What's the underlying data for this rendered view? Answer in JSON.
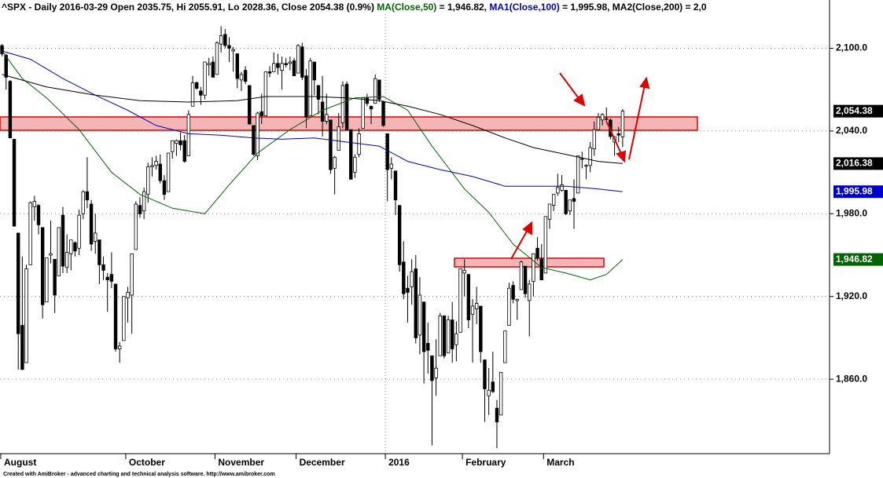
{
  "chart_data": {
    "type": "candlestick",
    "title_parts": [
      {
        "text": "^SPX - Daily 2016-03-29 Open 2035.75, Hi 2055.91, Lo 2028.36, Close 2054.38 (0.9%) ",
        "color": "#000000"
      },
      {
        "text": "MA(Close,50)",
        "color": "#006400"
      },
      {
        "text": " = 1,946.82, ",
        "color": "#000000"
      },
      {
        "text": "MA1(Close,100)",
        "color": "#0000cc"
      },
      {
        "text": " = 1,995.98, ",
        "color": "#000000"
      },
      {
        "text": "MA2(Close,200)",
        "color": "#000000"
      },
      {
        "text": " = 2,0",
        "color": "#000000"
      }
    ],
    "footer": "Created with AmiBroker - advanced charting and technical analysis software. http://www.amibroker.com",
    "open": [
      2102,
      2095,
      2076,
      2034,
      1966,
      1899,
      1872,
      1943,
      1985,
      1986,
      1970,
      1916,
      1950,
      1947,
      1935,
      1979,
      1941,
      1951,
      1959,
      1955,
      1980,
      1996,
      1987,
      1960,
      1961,
      1943,
      1934,
      1936,
      1929,
      1882,
      1888,
      1919,
      1921,
      1954,
      1986,
      1982,
      1994,
      2014,
      2015,
      2016,
      2004,
      1996,
      2025,
      2031,
      2033,
      2033,
      2022,
      2058,
      2075,
      2069,
      2066,
      2088,
      2090,
      2081,
      2103,
      2110,
      2102,
      2098,
      2096,
      2077,
      2084,
      2073,
      2044,
      2022,
      2054,
      2051,
      2083,
      2083,
      2089,
      2084,
      2089,
      2089,
      2091,
      2082,
      2101,
      2080,
      2051,
      2090,
      2073,
      2061,
      2047,
      2048,
      2013,
      2026,
      2046,
      2074,
      2041,
      2010,
      2023,
      2042,
      2064,
      2058,
      2060,
      2077,
      2061,
      2038,
      2013,
      2011,
      1986,
      1945,
      1926,
      1927,
      1940,
      1892,
      1916,
      1886,
      1877,
      1861,
      1877,
      1906,
      1879,
      1903,
      1885,
      1894,
      1937,
      1936,
      1907,
      1911,
      1913,
      1874,
      1848,
      1858,
      1839,
      1834,
      1872,
      1899,
      1928,
      1917,
      1925,
      1942,
      1917,
      1931,
      1955,
      1947,
      1937,
      1976,
      1986,
      1995,
      1997,
      1997,
      1982,
      1991,
      1995,
      2020,
      2015,
      2015,
      2027,
      2041,
      2048,
      2049,
      2048,
      2032,
      2038,
      2035.75
    ],
    "high": [
      2103,
      2096,
      2077,
      2034,
      1966,
      1949,
      1943,
      1989,
      1993,
      1987,
      1970,
      1948,
      1975,
      1947,
      1970,
      1985,
      1965,
      1961,
      1960,
      1983,
      1997,
      2021,
      1990,
      1980,
      1961,
      1949,
      1937,
      1952,
      1929,
      1887,
      1920,
      1927,
      1951,
      1989,
      1992,
      1999,
      2017,
      2021,
      2022,
      2023,
      2008,
      2024,
      2033,
      2034,
      2039,
      2037,
      2055,
      2080,
      2076,
      2072,
      2090,
      2093,
      2094,
      2105,
      2116,
      2114,
      2108,
      2101,
      2096,
      2083,
      2087,
      2073,
      2044,
      2054,
      2067,
      2083,
      2087,
      2097,
      2096,
      2094,
      2093,
      2094,
      2093,
      2103,
      2104,
      2085,
      2093,
      2090,
      2073,
      2080,
      2067,
      2048,
      2022,
      2053,
      2076,
      2076,
      2041,
      2023,
      2042,
      2064,
      2067,
      2058,
      2081,
      2077,
      2062,
      2038,
      2021,
      2011,
      1986,
      1960,
      1935,
      1947,
      1950,
      1934,
      1916,
      1901,
      1877,
      1889,
      1908,
      1906,
      1906,
      1916,
      1902,
      1940,
      1947,
      1936,
      1918,
      1927,
      1913,
      1874,
      1868,
      1880,
      1845,
      1865,
      1895,
      1930,
      1931,
      1918,
      1946,
      1942,
      1932,
      1951,
      1963,
      1958,
      1978,
      1987,
      1994,
      2009,
      2008,
      1997,
      1990,
      2005,
      2022,
      2025,
      2016,
      2032,
      2047,
      2053,
      2053,
      2057,
      2049,
      2036,
      2043,
      2055.91
    ],
    "low": [
      2094,
      2070,
      2035,
      1971,
      1867,
      1867,
      1872,
      1943,
      1975,
      1965,
      1904,
      1916,
      1944,
      1908,
      1935,
      1937,
      1937,
      1939,
      1949,
      1950,
      1976,
      1984,
      1953,
      1951,
      1929,
      1932,
      1909,
      1926,
      1880,
      1872,
      1888,
      1901,
      1893,
      1954,
      1977,
      1976,
      1988,
      2007,
      2012,
      2002,
      1990,
      1996,
      2020,
      2022,
      2026,
      2017,
      2022,
      2058,
      2070,
      2059,
      2063,
      2080,
      2079,
      2081,
      2097,
      2100,
      2090,
      2083,
      2071,
      2069,
      2074,
      2045,
      2022,
      2019,
      2045,
      2051,
      2079,
      2083,
      2081,
      2070,
      2086,
      2084,
      2080,
      2082,
      2077,
      2042,
      2051,
      2066,
      2052,
      2036,
      2045,
      2009,
      1994,
      2026,
      2042,
      2041,
      2005,
      2006,
      2021,
      2042,
      2058,
      2045,
      2060,
      2061,
      2043,
      1989,
      2005,
      1979,
      1938,
      1918,
      1901,
      1914,
      1886,
      1878,
      1857,
      1864,
      1812,
      1848,
      1877,
      1875,
      1879,
      1872,
      1873,
      1894,
      1920,
      1897,
      1872,
      1900,
      1872,
      1829,
      1834,
      1850,
      1810,
      1834,
      1872,
      1899,
      1915,
      1903,
      1925,
      1919,
      1891,
      1920,
      1946,
      1932,
      1937,
      1969,
      1982,
      1993,
      1996,
      1979,
      1979,
      1969,
      1995,
      2013,
      2005,
      2010,
      2022,
      2041,
      2044,
      2046,
      2034,
      2022,
      2032,
      2028.36
    ],
    "close": [
      2096,
      2079,
      2035,
      1971,
      1893,
      1867,
      1940,
      1988,
      1989,
      1972,
      1914,
      1948,
      1951,
      1921,
      1970,
      1942,
      1952,
      1961,
      1953,
      1979,
      1996,
      1990,
      1958,
      1966,
      1943,
      1939,
      1932,
      1931,
      1882,
      1884,
      1920,
      1923,
      1951,
      1987,
      1980,
      1996,
      2014,
      2015,
      2018,
      2004,
      1994,
      2024,
      2033,
      2033,
      2030,
      2018,
      2052,
      2075,
      2071,
      2066,
      2090,
      2089,
      2079,
      2104,
      2109,
      2102,
      2100,
      2099,
      2078,
      2081,
      2076,
      2045,
      2023,
      2053,
      2051,
      2083,
      2082,
      2089,
      2086,
      2089,
      2088,
      2090,
      2080,
      2102,
      2079,
      2050,
      2091,
      2077,
      2063,
      2047,
      2052,
      2012,
      2021,
      2043,
      2073,
      2041,
      2005,
      2021,
      2038,
      2064,
      2060,
      2056,
      2078,
      2063,
      2044,
      2012,
      2016,
      1990,
      1943,
      1922,
      1923,
      1938,
      1890,
      1921,
      1880,
      1881,
      1859,
      1868,
      1906,
      1877,
      1903,
      1882,
      1893,
      1940,
      1939,
      1903,
      1913,
      1915,
      1880,
      1853,
      1852,
      1851,
      1829,
      1865,
      1895,
      1926,
      1918,
      1918,
      1945,
      1922,
      1929,
      1951,
      1948,
      1932,
      1978,
      1987,
      1994,
      1999,
      2001,
      1980,
      1990,
      1989,
      2022,
      2020,
      2015,
      2028,
      2041,
      2050,
      2052,
      2049,
      2036,
      2036,
      2037,
      2054.38
    ],
    "series": [
      {
        "name": "MA(Close,50)",
        "color": "#006400",
        "x": [
          0,
          5,
          11,
          19,
          27,
          34,
          42,
          50,
          56,
          63,
          71,
          79,
          87,
          94,
          100,
          106,
          114,
          120,
          126,
          133,
          139,
          145,
          149,
          153
        ],
        "values": [
          2098,
          2078,
          2064,
          2041,
          2010,
          1994,
          1984,
          1980,
          2001,
          2024,
          2041,
          2055,
          2064,
          2065,
          2055,
          2029,
          1998,
          1981,
          1958,
          1941,
          1937,
          1932,
          1936,
          1946.82
        ]
      },
      {
        "name": "MA1(Close,100)",
        "color": "#0000cc",
        "x": [
          0,
          7,
          15,
          23,
          31,
          38,
          46,
          54,
          62,
          69,
          77,
          85,
          93,
          100,
          108,
          116,
          124,
          131,
          139,
          147,
          153
        ],
        "values": [
          2098,
          2092,
          2078,
          2066,
          2055,
          2044,
          2038,
          2037,
          2035,
          2034,
          2035,
          2032,
          2029,
          2018,
          2012,
          2007,
          2000,
          2000,
          2000,
          1998,
          1995.98
        ]
      },
      {
        "name": "MA2(Close,200)",
        "color": "#000000",
        "x": [
          0,
          11,
          23,
          34,
          46,
          58,
          65,
          77,
          85,
          93,
          100,
          108,
          116,
          124,
          131,
          139,
          147,
          153
        ],
        "values": [
          2081,
          2072,
          2066,
          2062,
          2061,
          2062,
          2065,
          2065,
          2064,
          2062,
          2058,
          2052,
          2044,
          2035,
          2028,
          2023,
          2018,
          2016.38
        ]
      }
    ],
    "last_labels": [
      {
        "value": 2054.38,
        "label": "2,054.38",
        "color": "#000000"
      },
      {
        "value": 2016.38,
        "label": "2,016.38",
        "color": "#000000"
      },
      {
        "value": 1995.98,
        "label": "1,995.98",
        "color": "#0000cc"
      },
      {
        "value": 1946.82,
        "label": "1,946.82",
        "color": "#006400"
      }
    ],
    "xlim": [
      -0.5,
      204
    ],
    "xticks": [
      {
        "value": 0,
        "label": "August"
      },
      {
        "value": 31,
        "label": "October"
      },
      {
        "value": 53,
        "label": "November"
      },
      {
        "value": 73,
        "label": "December"
      },
      {
        "value": 95,
        "label": "2016"
      },
      {
        "value": 114,
        "label": "February"
      },
      {
        "value": 134,
        "label": "March"
      }
    ],
    "ylim": [
      1806,
      2135
    ],
    "yticks": [
      {
        "value": 1860,
        "label": "1,860.0"
      },
      {
        "value": 1920,
        "label": "1,920.0"
      },
      {
        "value": 1980,
        "label": "1,980.0"
      },
      {
        "value": 2040,
        "label": "2,040.0"
      },
      {
        "value": 2100,
        "label": "2,100.0"
      }
    ],
    "grid": true
  }
}
